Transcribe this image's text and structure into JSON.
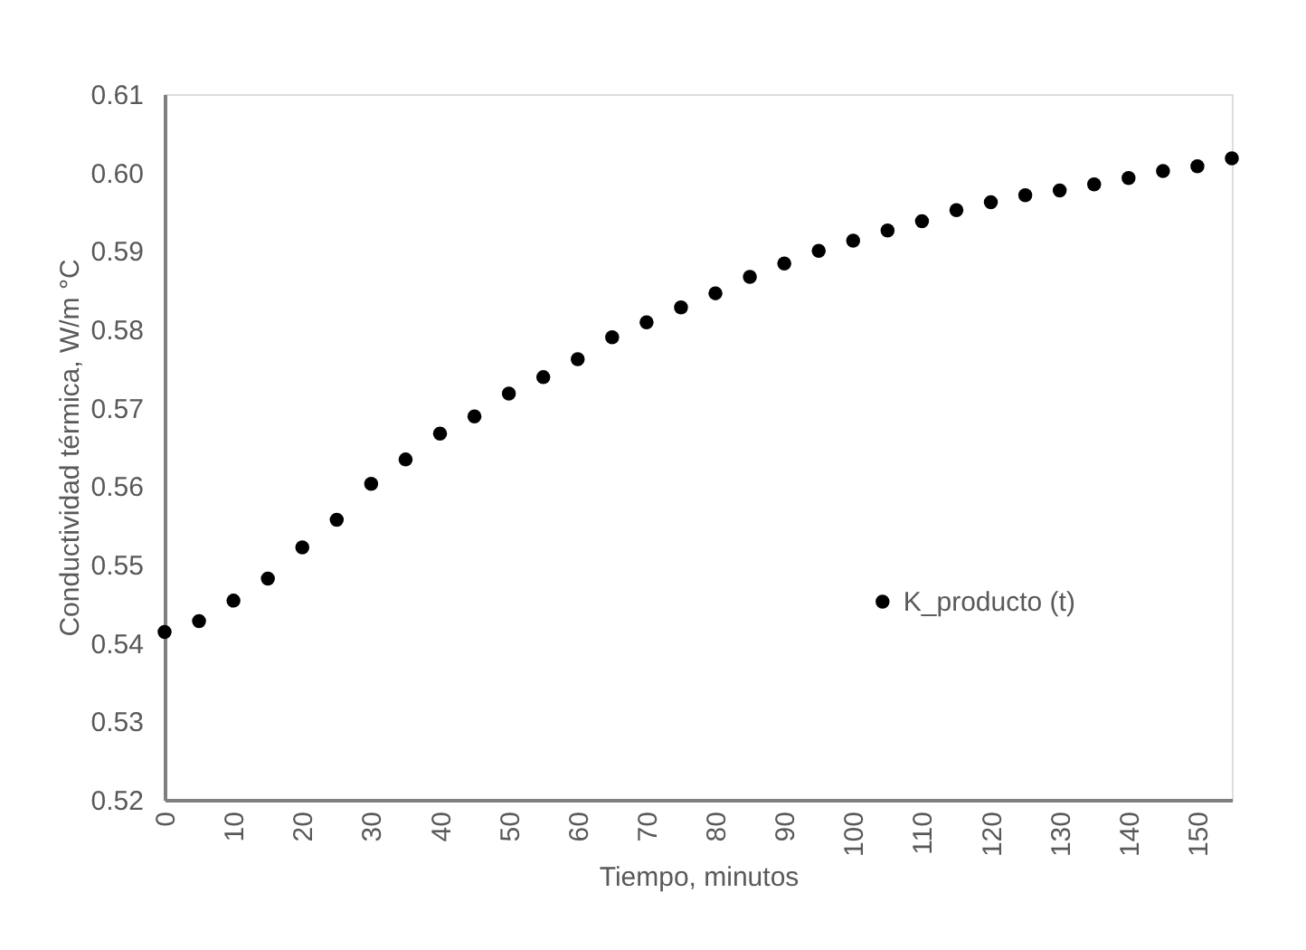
{
  "chart_data": {
    "type": "scatter",
    "xlabel": "Tiempo, minutos",
    "ylabel": "Conductividad térmica, W/m °C",
    "series": [
      {
        "name": "K_producto (t)",
        "color": "#000000",
        "x": [
          0,
          5,
          10,
          15,
          20,
          25,
          30,
          35,
          40,
          45,
          50,
          55,
          60,
          65,
          70,
          75,
          80,
          85,
          90,
          95,
          100,
          105,
          110,
          115,
          120,
          125,
          130,
          135,
          140,
          145,
          150,
          155
        ],
        "values": [
          0.5414,
          0.5428,
          0.5454,
          0.5482,
          0.5522,
          0.5557,
          0.5603,
          0.5634,
          0.5667,
          0.5689,
          0.5718,
          0.5739,
          0.5762,
          0.579,
          0.5809,
          0.5828,
          0.5846,
          0.5867,
          0.5884,
          0.59,
          0.5913,
          0.5926,
          0.5938,
          0.5952,
          0.5962,
          0.5971,
          0.5977,
          0.5985,
          0.5993,
          0.6002,
          0.6008,
          0.6018
        ]
      }
    ],
    "xlim": [
      0,
      155
    ],
    "xticks": [
      0,
      10,
      20,
      30,
      40,
      50,
      60,
      70,
      80,
      90,
      100,
      110,
      120,
      130,
      140,
      150
    ],
    "ylim": [
      0.52,
      0.61
    ],
    "yticks": [
      0.52,
      0.53,
      0.54,
      0.55,
      0.56,
      0.57,
      0.58,
      0.59,
      {
        "value": 0.6,
        "label": "0.60"
      },
      0.61
    ],
    "grid": false,
    "legend": "right",
    "marker": "circle"
  }
}
